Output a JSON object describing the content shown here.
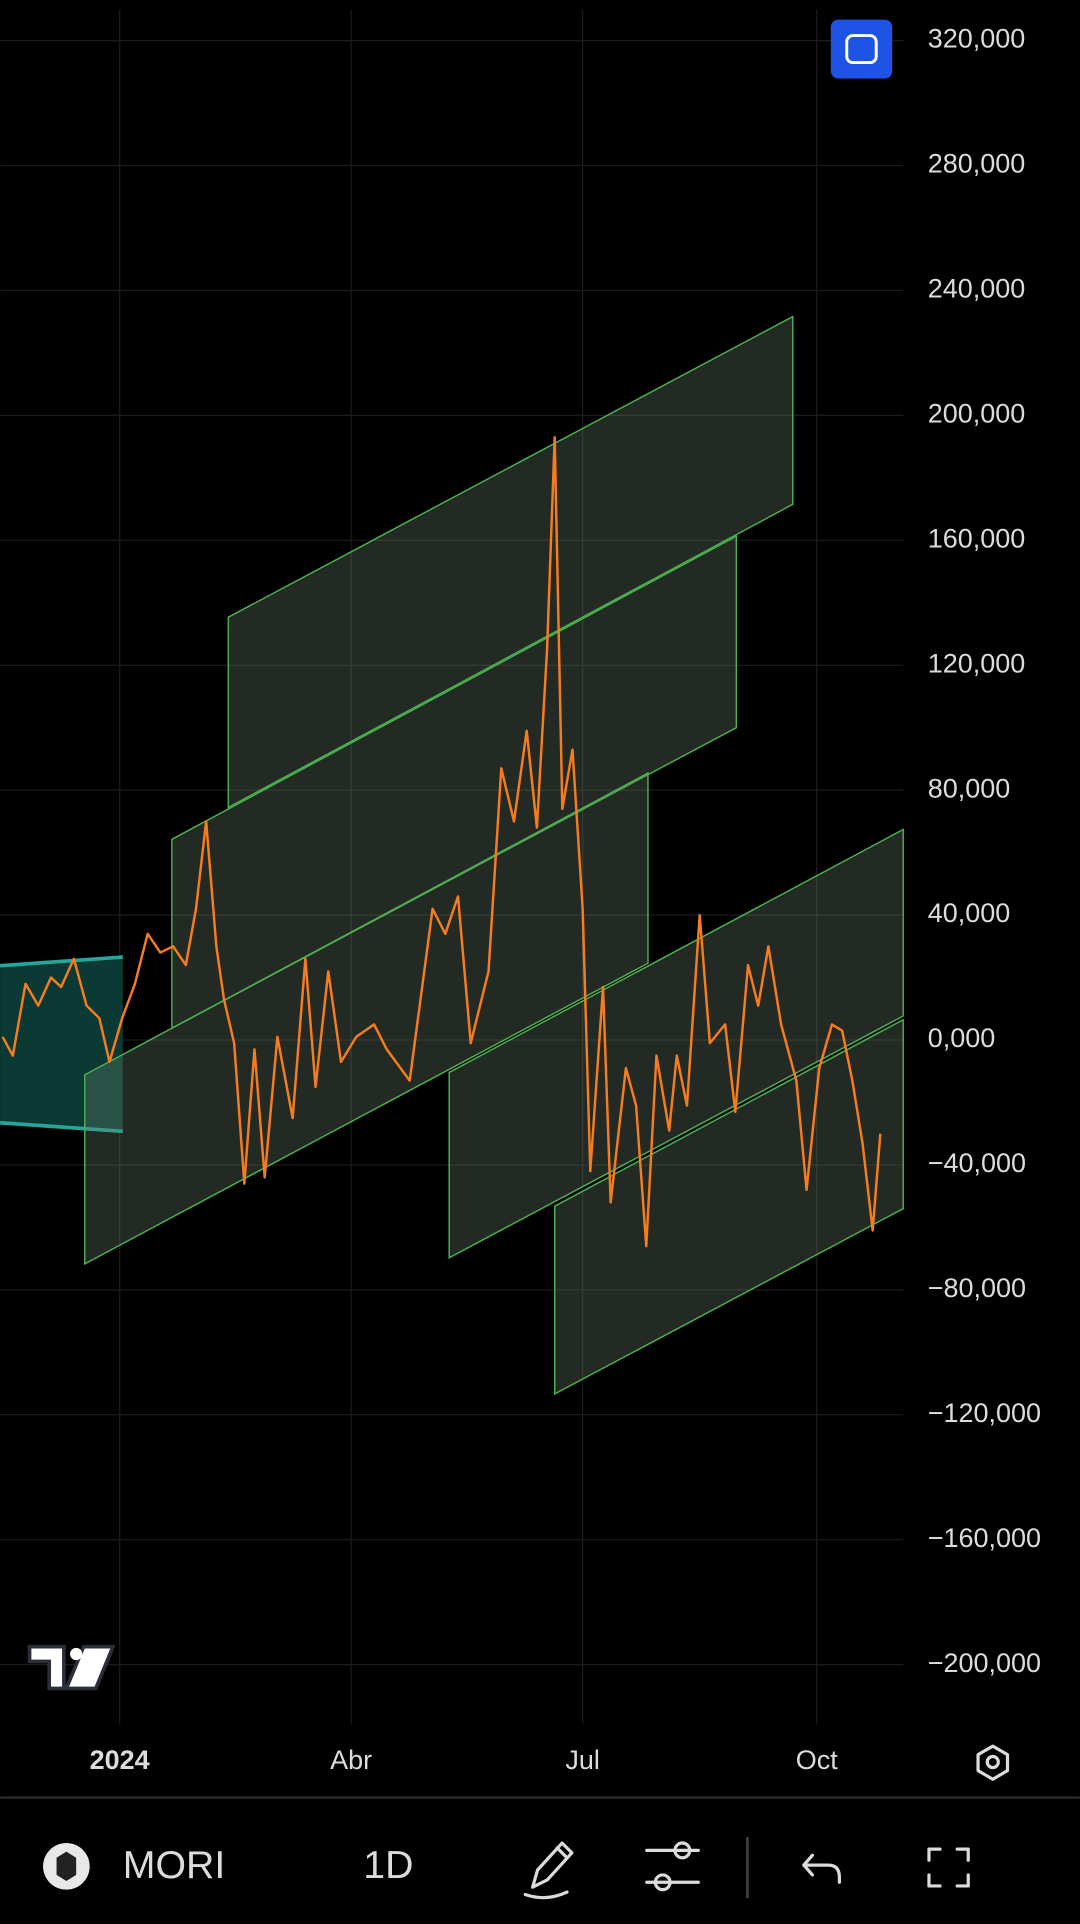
{
  "chart_data": {
    "type": "line",
    "color": "#f57c1f",
    "grid": true,
    "x": [
      -46,
      -42,
      -37,
      -32,
      -27,
      -23,
      -18,
      -13,
      -8,
      -4,
      1,
      6,
      11,
      16,
      21,
      26,
      30,
      34,
      38,
      41,
      45,
      49,
      53,
      57,
      62,
      68,
      73,
      77,
      82,
      87,
      93,
      100,
      105,
      114,
      123,
      128,
      133,
      138,
      145,
      150,
      155,
      160,
      164,
      168,
      171,
      174,
      178,
      182,
      185,
      190,
      193,
      199,
      203,
      207,
      211,
      216,
      219,
      223,
      228,
      232,
      238,
      242,
      247,
      251,
      255,
      260,
      266,
      270,
      275,
      280,
      284,
      288,
      292,
      296,
      299
    ],
    "values": [
      1000,
      -5000,
      18000,
      11000,
      20000,
      17000,
      26000,
      11000,
      7000,
      -7000,
      7000,
      18000,
      34000,
      28000,
      30000,
      24000,
      42000,
      70000,
      30000,
      13000,
      -1000,
      -46000,
      -3000,
      -44000,
      1000,
      -25000,
      26000,
      -15000,
      22000,
      -7000,
      1000,
      5000,
      -3000,
      -13000,
      42000,
      34000,
      46000,
      -1000,
      22000,
      87000,
      70000,
      99000,
      68000,
      125000,
      193000,
      74000,
      93000,
      42000,
      -42000,
      17000,
      -52000,
      -9000,
      -21000,
      -66000,
      -5000,
      -29000,
      -5000,
      -21000,
      40000,
      -1000,
      5000,
      -23000,
      24000,
      11000,
      30000,
      5000,
      -13000,
      -48000,
      -9000,
      5000,
      3000,
      -13000,
      -33000,
      -61000,
      -30000
    ],
    "xlim": [
      -47,
      308
    ],
    "xticks": [
      {
        "value": 0,
        "label": "2024"
      },
      {
        "value": 91,
        "label": "Abr"
      },
      {
        "value": 182,
        "label": "Jul"
      },
      {
        "value": 274,
        "label": "Oct"
      }
    ],
    "ylim": [
      -219000,
      333000
    ],
    "yticks": [
      {
        "value": 320000,
        "label": "320,000"
      },
      {
        "value": 280000,
        "label": "280,000"
      },
      {
        "value": 240000,
        "label": "240,000"
      },
      {
        "value": 200000,
        "label": "200,000"
      },
      {
        "value": 160000,
        "label": "160,000"
      },
      {
        "value": 120000,
        "label": "120,000"
      },
      {
        "value": 80000,
        "label": "80,000"
      },
      {
        "value": 40000,
        "label": "40,000"
      },
      {
        "value": 0,
        "label": "0,000"
      },
      {
        "value": -40000,
        "label": "−40,000"
      },
      {
        "value": -80000,
        "label": "−80,000"
      },
      {
        "value": -120000,
        "label": "−120,000"
      },
      {
        "value": -160000,
        "label": "−160,000"
      },
      {
        "value": -200000,
        "label": "−200,000"
      }
    ]
  },
  "toolbar": {
    "symbol": "MORI",
    "interval": "1D"
  }
}
